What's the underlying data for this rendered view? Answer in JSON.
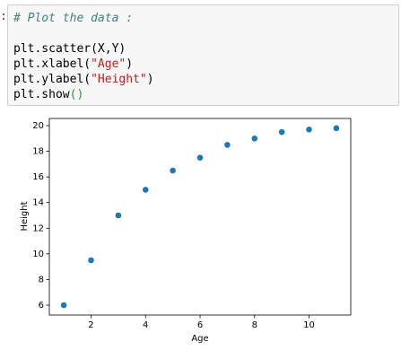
{
  "prompt": ":",
  "code": [
    [
      {
        "text": "# Plot the data :",
        "color": "#408080",
        "italic": true
      }
    ],
    [],
    [
      {
        "text": "plt.scatter(X,Y)",
        "color": "#000000"
      }
    ],
    [
      {
        "text": "plt.xlabel(",
        "color": "#000000"
      },
      {
        "text": "\"Age\"",
        "color": "#ba2121"
      },
      {
        "text": ")",
        "color": "#000000"
      }
    ],
    [
      {
        "text": "plt.ylabel(",
        "color": "#000000"
      },
      {
        "text": "\"Height\"",
        "color": "#ba2121"
      },
      {
        "text": ")",
        "color": "#000000"
      }
    ],
    [
      {
        "text": "plt.show",
        "color": "#000000"
      },
      {
        "text": "()",
        "color": "#2ca02c"
      }
    ]
  ],
  "chart_data": {
    "type": "scatter",
    "xlabel": "Age",
    "ylabel": "Height",
    "x": [
      1,
      2,
      3,
      4,
      5,
      6,
      7,
      8,
      9,
      10,
      11
    ],
    "values": [
      6,
      9.5,
      13,
      15,
      16.5,
      17.5,
      18.5,
      19,
      19.5,
      19.7,
      19.8
    ],
    "color": "#1f77b4",
    "xlim": [
      0.47,
      11.53
    ],
    "ylim": [
      5.23,
      20.56
    ],
    "xticks": [
      2,
      4,
      6,
      8,
      10
    ],
    "yticks": [
      6,
      8,
      10,
      12,
      14,
      16,
      18,
      20
    ]
  }
}
